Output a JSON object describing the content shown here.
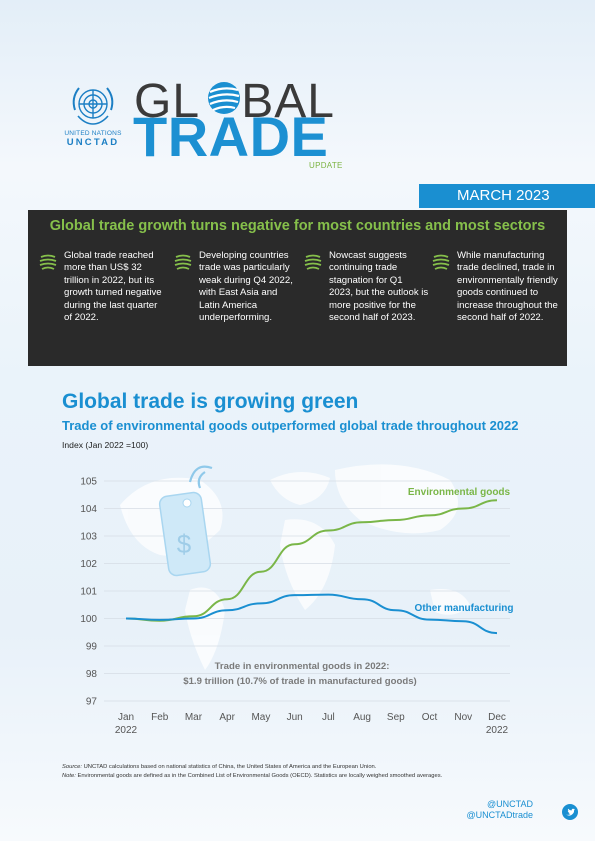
{
  "header": {
    "logo_line1": "UNITED NATIONS",
    "logo_line2": "UNCTAD",
    "title_line1": "GL   BAL",
    "title_line2": "TRADE",
    "update_label": "UPDATE",
    "date": "MARCH 2023"
  },
  "summary": {
    "heading": "Global trade growth turns negative for most countries and most sectors",
    "bullets": [
      {
        "text": "Global trade reached more than US$ 32 trillion in 2022, but its growth turned negative during the last quarter of 2022."
      },
      {
        "text": "Developing countries trade was particularly weak during Q4 2022, with East Asia and Latin America underperforming."
      },
      {
        "text": "Nowcast suggests continuing trade stagnation for Q1 2023, but the outlook is more positive for the second half of 2023."
      },
      {
        "text": "While manufacturing trade declined, trade in environmentally friendly goods continued to increase throughout the second half of 2022."
      }
    ]
  },
  "section": {
    "title": "Global trade is growing green",
    "subtitle": "Trade of environmental goods outperformed global trade throughout 2022",
    "index_label": "Index (Jan 2022 =100)"
  },
  "chart_data": {
    "type": "line",
    "x": [
      "Jan",
      "Feb",
      "Mar",
      "Apr",
      "May",
      "Jun",
      "Jul",
      "Aug",
      "Sep",
      "Oct",
      "Nov",
      "Dec"
    ],
    "x_sub": [
      "2022",
      "",
      "",
      "",
      "",
      "",
      "",
      "",
      "",
      "",
      "",
      "2022"
    ],
    "ylim": [
      97,
      105
    ],
    "yticks": [
      "97",
      "98",
      "99",
      "100",
      "101",
      "102",
      "103",
      "104",
      "105"
    ],
    "grid": true,
    "series": [
      {
        "name": "Environmental goods",
        "color": "#7ab648",
        "values": [
          100.0,
          99.92,
          100.08,
          100.7,
          101.7,
          102.7,
          103.2,
          103.5,
          103.58,
          103.75,
          104.0,
          104.3
        ]
      },
      {
        "name": "Other manufacturing",
        "color": "#1a8fd1",
        "values": [
          100.0,
          99.95,
          100.0,
          100.3,
          100.55,
          100.85,
          100.87,
          100.7,
          100.3,
          99.96,
          99.9,
          99.47
        ]
      }
    ],
    "annotation_line1": "Trade in environmental goods in 2022:",
    "annotation_line2": "$1.9 trillion (10.7% of trade in manufactured goods)",
    "tag_symbol": "$"
  },
  "footer": {
    "source_label": "Source:",
    "source_text": " UNCTAD calculations based on national statistics of China, the United States of America and the European Union.",
    "note_label": "Note:",
    "note_text": " Environmental goods are defined as in the Combined List of Environmental Goods (OECD).  Statistics are locally weighed smoothed averages.",
    "handle1": "@UNCTAD",
    "handle2": "@UNCTADtrade"
  },
  "colors": {
    "accent_blue": "#1a8fd1",
    "accent_green": "#7ab648",
    "panel_dark": "#2a2a2a"
  },
  "icons": {
    "logo": "un-emblem-icon",
    "bullet": "globe-stripes-icon",
    "tag": "price-tag-icon",
    "social": "twitter-icon"
  }
}
